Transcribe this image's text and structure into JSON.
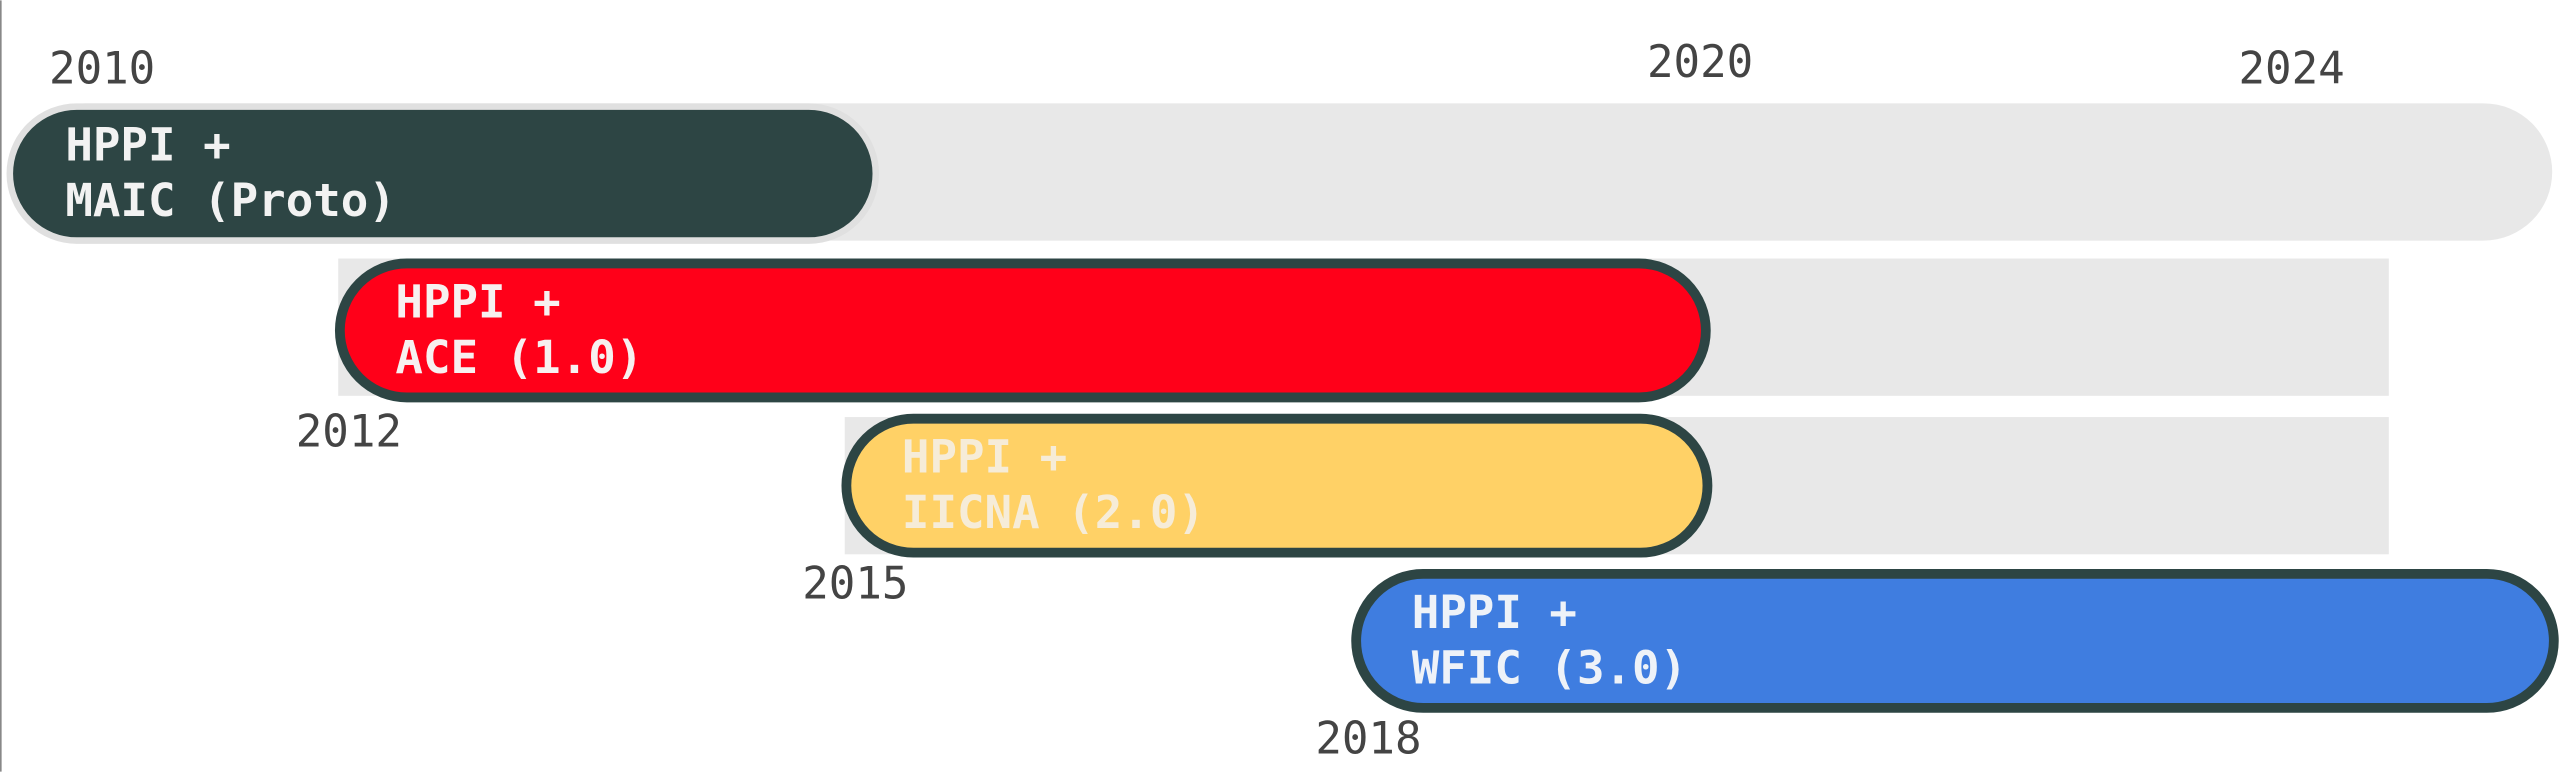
{
  "top_years": [
    "2010",
    "2020",
    "2024"
  ],
  "bars": [
    {
      "lines": [
        "HPPI +",
        "MAIC (Proto)"
      ]
    },
    {
      "lines": [
        "HPPI +",
        "ACE (1.0)"
      ],
      "year": "2012"
    },
    {
      "lines": [
        "HPPI +",
        "IICNA (2.0)"
      ],
      "year": "2015"
    },
    {
      "lines": [
        "HPPI +",
        "WFIC (3.0)"
      ],
      "year": "2018"
    }
  ]
}
